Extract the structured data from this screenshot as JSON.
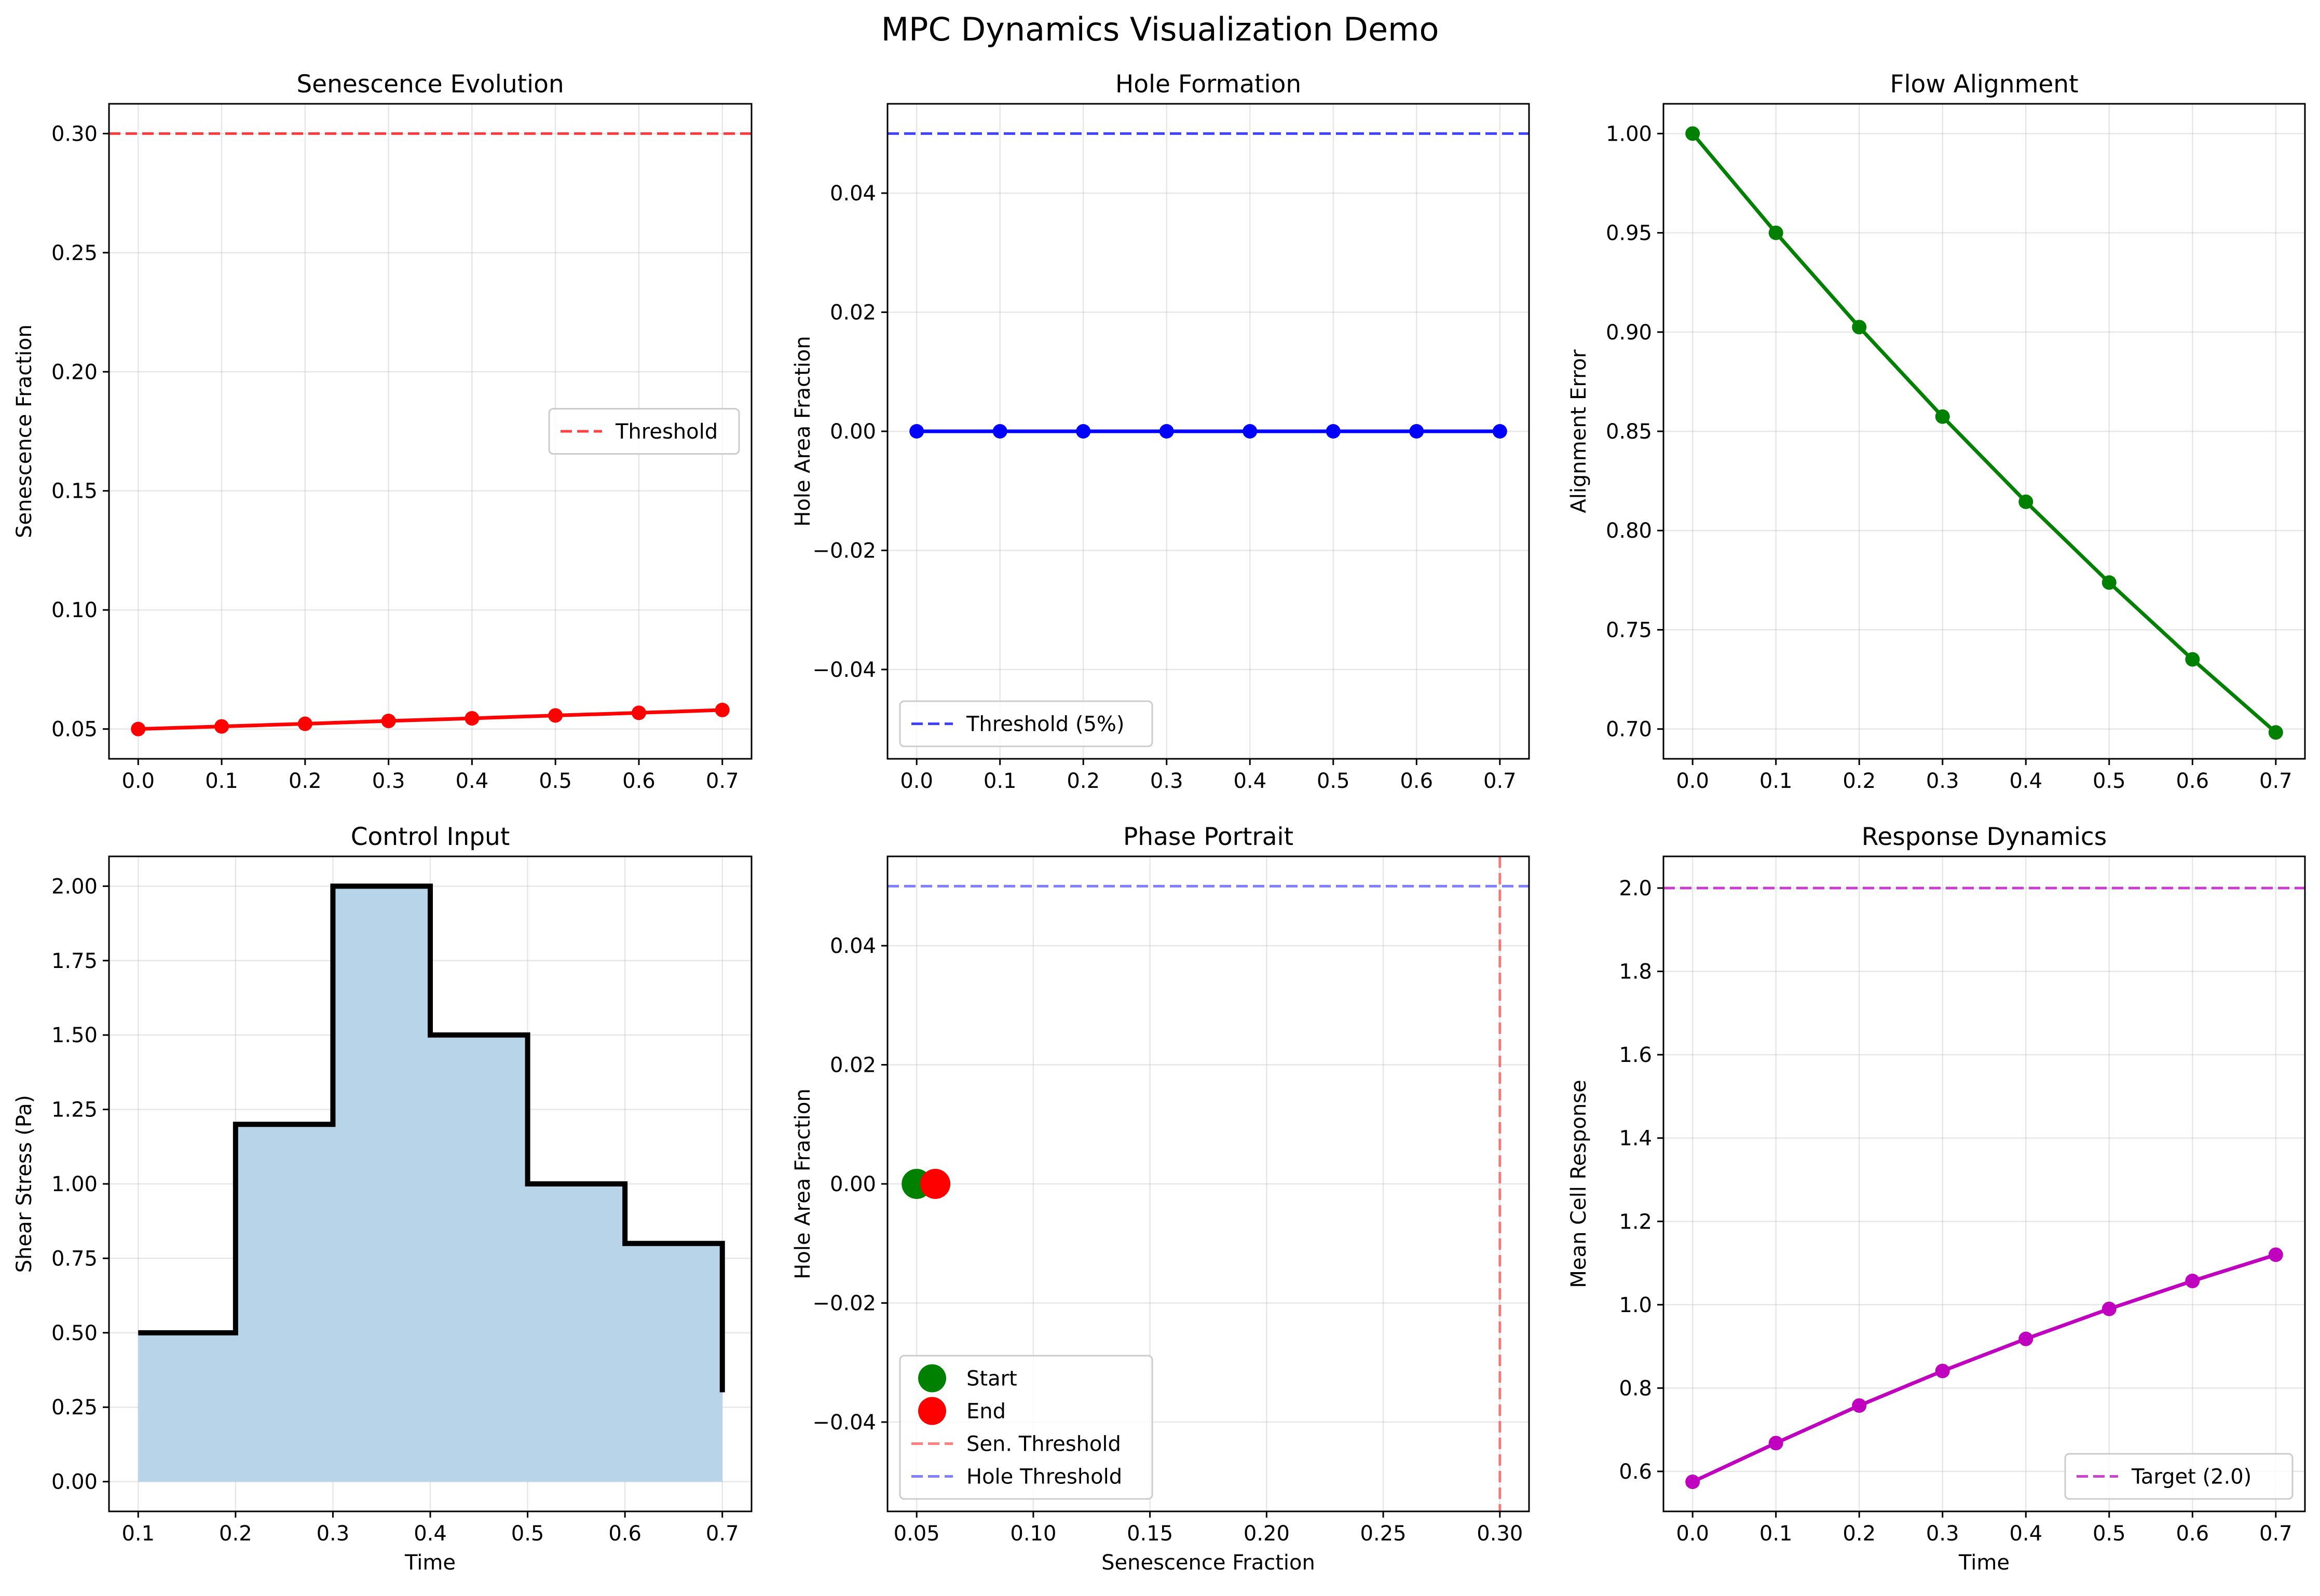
{
  "figure": {
    "title": "MPC Dynamics Visualization Demo"
  },
  "chart_data": [
    {
      "id": "senescence",
      "type": "line",
      "title": "Senescence Evolution",
      "xlabel": "",
      "ylabel": "Senescence Fraction",
      "xlim": [
        -0.035,
        0.735
      ],
      "ylim": [
        0.0375,
        0.3125
      ],
      "xticks": [
        "0.0",
        "0.1",
        "0.2",
        "0.3",
        "0.4",
        "0.5",
        "0.6",
        "0.7"
      ],
      "xtickvals": [
        0,
        0.1,
        0.2,
        0.3,
        0.4,
        0.5,
        0.6,
        0.7
      ],
      "yticks": [
        "0.05",
        "0.10",
        "0.15",
        "0.20",
        "0.25",
        "0.30"
      ],
      "ytickvals": [
        0.05,
        0.1,
        0.15,
        0.2,
        0.25,
        0.3
      ],
      "grid": true,
      "series": [
        {
          "color": "#ff0000",
          "markers": true,
          "x": [
            0,
            0.1,
            0.2,
            0.3,
            0.4,
            0.5,
            0.6,
            0.7
          ],
          "y": [
            0.05,
            0.0511,
            0.0522,
            0.0534,
            0.0545,
            0.0557,
            0.0568,
            0.058
          ]
        }
      ],
      "hlines": [
        {
          "y": 0.3,
          "color": "#ff0000",
          "opacity": 0.75,
          "name": "Threshold"
        }
      ],
      "legend": {
        "position": "center-right",
        "entries": [
          {
            "label": "Threshold",
            "color": "#ff0000",
            "style": "dashed"
          }
        ]
      }
    },
    {
      "id": "holes",
      "type": "line",
      "title": "Hole Formation",
      "xlabel": "",
      "ylabel": "Hole Area Fraction",
      "xlim": [
        -0.035,
        0.735
      ],
      "ylim": [
        -0.055,
        0.055
      ],
      "xticks": [
        "0.0",
        "0.1",
        "0.2",
        "0.3",
        "0.4",
        "0.5",
        "0.6",
        "0.7"
      ],
      "xtickvals": [
        0,
        0.1,
        0.2,
        0.3,
        0.4,
        0.5,
        0.6,
        0.7
      ],
      "yticks": [
        "−0.04",
        "−0.02",
        "0.00",
        "0.02",
        "0.04"
      ],
      "ytickvals": [
        -0.04,
        -0.02,
        0,
        0.02,
        0.04
      ],
      "grid": true,
      "series": [
        {
          "color": "#0000ff",
          "markers": true,
          "x": [
            0,
            0.1,
            0.2,
            0.3,
            0.4,
            0.5,
            0.6,
            0.7
          ],
          "y": [
            0,
            0,
            0,
            0,
            0,
            0,
            0,
            0
          ]
        }
      ],
      "hlines": [
        {
          "y": 0.05,
          "color": "#0000ff",
          "opacity": 0.75,
          "name": "Threshold (5%)"
        }
      ],
      "legend": {
        "position": "lower-left",
        "entries": [
          {
            "label": "Threshold (5%)",
            "color": "#0000ff",
            "style": "dashed"
          }
        ]
      }
    },
    {
      "id": "alignment",
      "type": "line",
      "title": "Flow Alignment",
      "xlabel": "",
      "ylabel": "Alignment Error",
      "xlim": [
        -0.035,
        0.735
      ],
      "ylim": [
        0.685,
        1.015
      ],
      "xticks": [
        "0.0",
        "0.1",
        "0.2",
        "0.3",
        "0.4",
        "0.5",
        "0.6",
        "0.7"
      ],
      "xtickvals": [
        0,
        0.1,
        0.2,
        0.3,
        0.4,
        0.5,
        0.6,
        0.7
      ],
      "yticks": [
        "0.70",
        "0.75",
        "0.80",
        "0.85",
        "0.90",
        "0.95",
        "1.00"
      ],
      "ytickvals": [
        0.7,
        0.75,
        0.8,
        0.85,
        0.9,
        0.95,
        1.0
      ],
      "grid": true,
      "series": [
        {
          "color": "#008000",
          "markers": true,
          "x": [
            0,
            0.1,
            0.2,
            0.3,
            0.4,
            0.5,
            0.6,
            0.7
          ],
          "y": [
            1.0,
            0.95,
            0.9025,
            0.8574,
            0.8145,
            0.7738,
            0.7351,
            0.6983
          ]
        }
      ],
      "hlines": [],
      "legend": null
    },
    {
      "id": "control",
      "type": "area",
      "title": "Control Input",
      "xlabel": "Time",
      "ylabel": "Shear Stress (Pa)",
      "xlim": [
        0.07,
        0.73
      ],
      "ylim": [
        -0.1,
        2.1
      ],
      "xticks": [
        "0.1",
        "0.2",
        "0.3",
        "0.4",
        "0.5",
        "0.6",
        "0.7"
      ],
      "xtickvals": [
        0.1,
        0.2,
        0.3,
        0.4,
        0.5,
        0.6,
        0.7
      ],
      "yticks": [
        "0.00",
        "0.25",
        "0.50",
        "0.75",
        "1.00",
        "1.25",
        "1.50",
        "1.75",
        "2.00"
      ],
      "ytickvals": [
        0,
        0.25,
        0.5,
        0.75,
        1.0,
        1.25,
        1.5,
        1.75,
        2.0
      ],
      "grid": true,
      "step": {
        "x": [
          0.1,
          0.2,
          0.3,
          0.4,
          0.5,
          0.6,
          0.7
        ],
        "y": [
          0.5,
          1.2,
          2.0,
          1.5,
          1.0,
          0.8,
          0.3
        ],
        "line_color": "#000000",
        "fill_color": "#b8d4e8"
      },
      "hlines": [],
      "legend": null
    },
    {
      "id": "phase",
      "type": "scatter",
      "title": "Phase Portrait",
      "xlabel": "Senescence Fraction",
      "ylabel": "Hole Area Fraction",
      "xlim": [
        0.0375,
        0.3125
      ],
      "ylim": [
        -0.055,
        0.055
      ],
      "xticks": [
        "0.05",
        "0.10",
        "0.15",
        "0.20",
        "0.25",
        "0.30"
      ],
      "xtickvals": [
        0.05,
        0.1,
        0.15,
        0.2,
        0.25,
        0.3
      ],
      "yticks": [
        "−0.04",
        "−0.02",
        "0.00",
        "0.02",
        "0.04"
      ],
      "ytickvals": [
        -0.04,
        -0.02,
        0,
        0.02,
        0.04
      ],
      "grid": true,
      "series": [
        {
          "color": "#000000",
          "markers": false,
          "x": [
            0.05,
            0.058
          ],
          "y": [
            0,
            0
          ]
        }
      ],
      "points": [
        {
          "name": "Start",
          "x": 0.05,
          "y": 0,
          "color": "#008000"
        },
        {
          "name": "End",
          "x": 0.058,
          "y": 0,
          "color": "#ff0000"
        }
      ],
      "hlines": [
        {
          "y": 0.05,
          "color": "#0000ff",
          "opacity": 0.5,
          "name": "Hole Threshold"
        }
      ],
      "vlines": [
        {
          "x": 0.3,
          "color": "#ff0000",
          "opacity": 0.5,
          "name": "Sen. Threshold"
        }
      ],
      "legend": {
        "position": "lower-left",
        "entries": [
          {
            "label": "Start",
            "color": "#008000",
            "style": "dot"
          },
          {
            "label": "End",
            "color": "#ff0000",
            "style": "dot"
          },
          {
            "label": "Sen. Threshold",
            "color": "#ff0000",
            "style": "dashed",
            "opacity": 0.5
          },
          {
            "label": "Hole Threshold",
            "color": "#0000ff",
            "style": "dashed",
            "opacity": 0.5
          }
        ]
      }
    },
    {
      "id": "response",
      "type": "line",
      "title": "Response Dynamics",
      "xlabel": "Time",
      "ylabel": "Mean Cell Response",
      "xlim": [
        -0.035,
        0.735
      ],
      "ylim": [
        0.504,
        2.076
      ],
      "xticks": [
        "0.0",
        "0.1",
        "0.2",
        "0.3",
        "0.4",
        "0.5",
        "0.6",
        "0.7"
      ],
      "xtickvals": [
        0,
        0.1,
        0.2,
        0.3,
        0.4,
        0.5,
        0.6,
        0.7
      ],
      "yticks": [
        "0.6",
        "0.8",
        "1.0",
        "1.2",
        "1.4",
        "1.6",
        "1.8",
        "2.0"
      ],
      "ytickvals": [
        0.6,
        0.8,
        1.0,
        1.2,
        1.4,
        1.6,
        1.8,
        2.0
      ],
      "grid": true,
      "series": [
        {
          "color": "#bf00bf",
          "markers": true,
          "x": [
            0,
            0.1,
            0.2,
            0.3,
            0.4,
            0.5,
            0.6,
            0.7
          ],
          "y": [
            0.575,
            0.668,
            0.758,
            0.841,
            0.918,
            0.99,
            1.057,
            1.12
          ]
        }
      ],
      "hlines": [
        {
          "y": 2.0,
          "color": "#bf00bf",
          "opacity": 0.75,
          "name": "Target (2.0)"
        }
      ],
      "legend": {
        "position": "lower-right",
        "entries": [
          {
            "label": "Target (2.0)",
            "color": "#bf00bf",
            "style": "dashed"
          }
        ]
      }
    }
  ]
}
